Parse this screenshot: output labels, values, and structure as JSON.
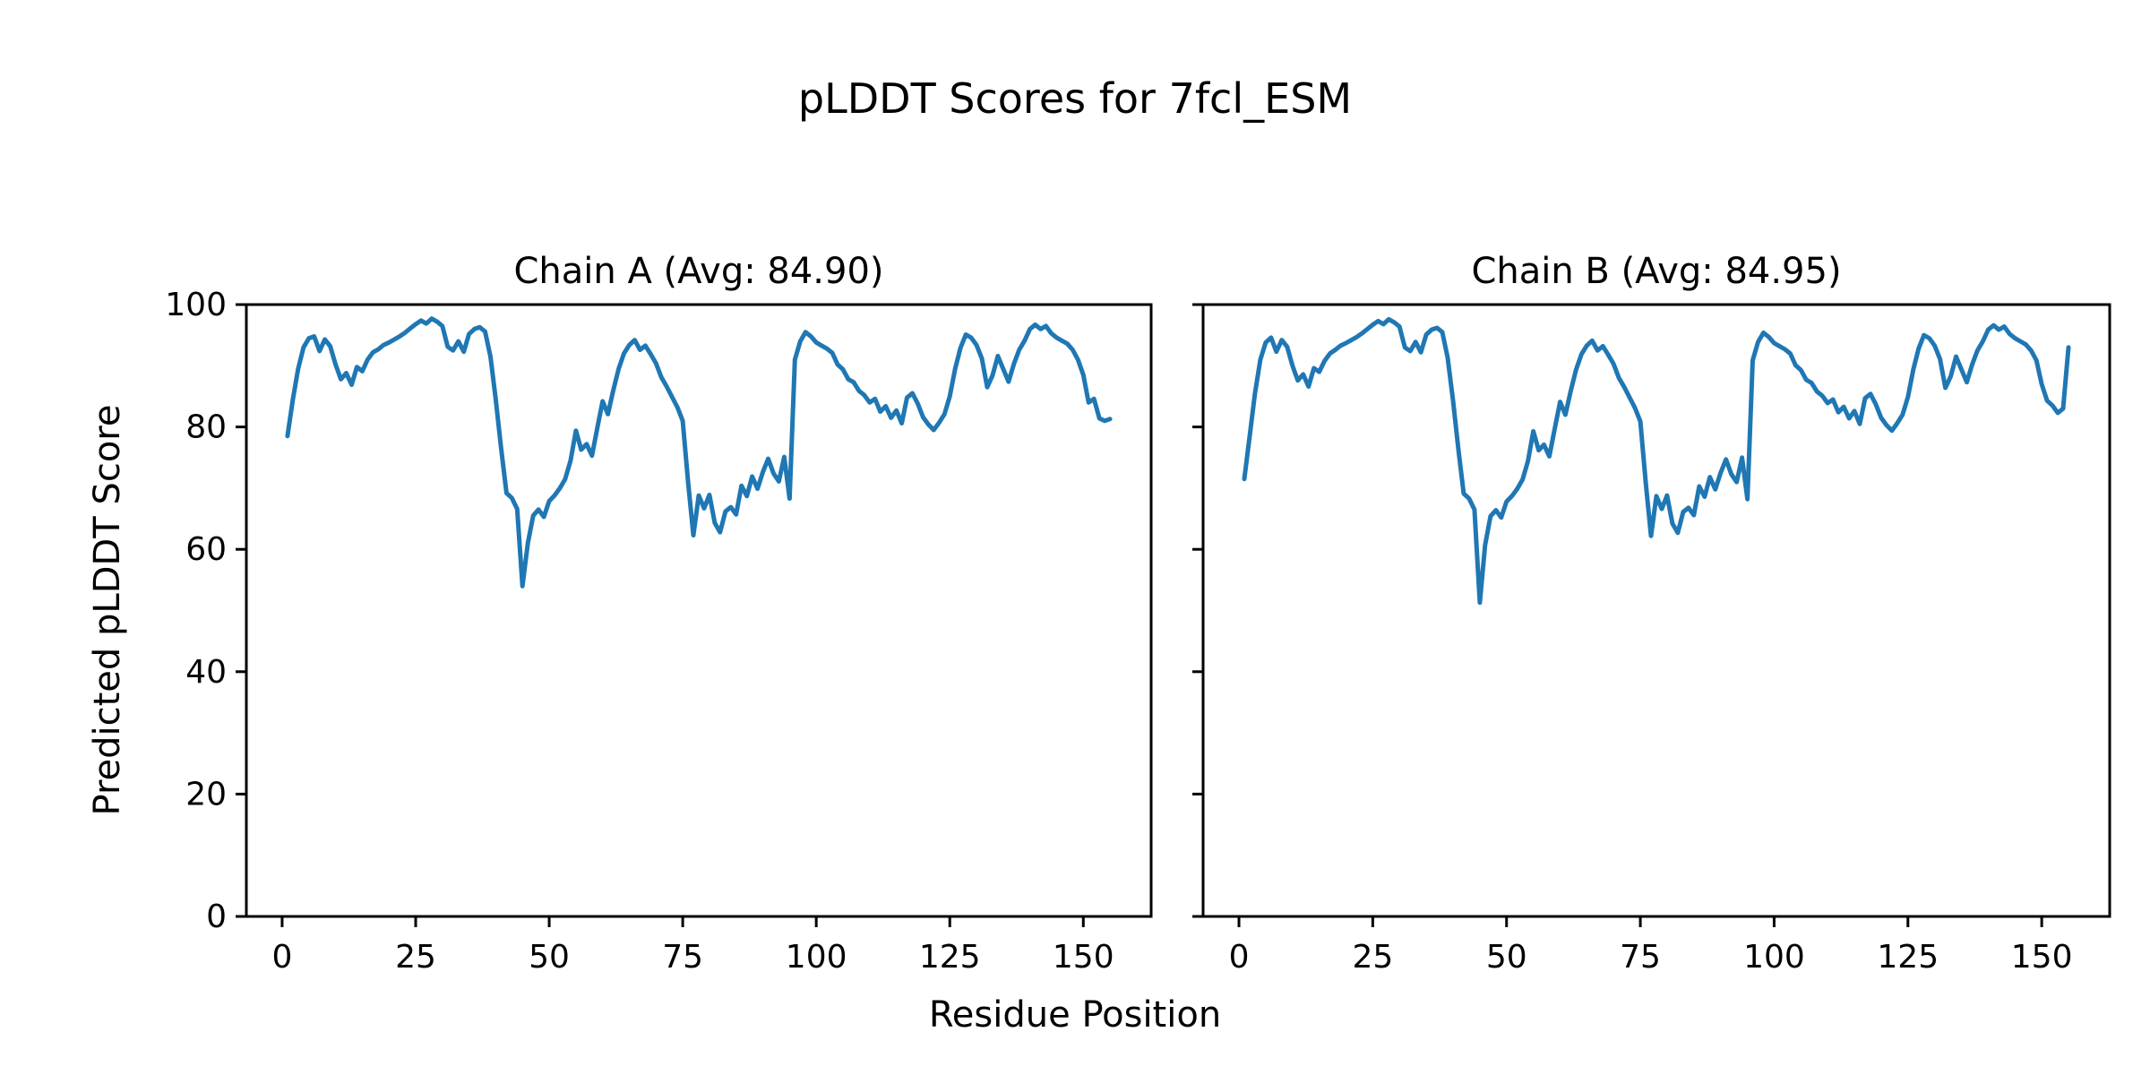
{
  "figure": {
    "title": "pLDDT Scores for 7fcl_ESM",
    "xlabel": "Residue Position",
    "ylabel": "Predicted pLDDT Score",
    "background_color": "#ffffff",
    "line_color": "#1f77b4",
    "text_color": "#000000"
  },
  "chart_data": [
    {
      "type": "line",
      "title": "Chain A (Avg: 84.90)",
      "average": 84.9,
      "legend": "none",
      "grid": false,
      "x_start": 1,
      "xlim": [
        -6.7,
        162.7
      ],
      "ylim": [
        0,
        100
      ],
      "x_ticks": [
        0,
        25,
        50,
        75,
        100,
        125,
        150
      ],
      "y_ticks": [
        0,
        20,
        40,
        60,
        80,
        100
      ],
      "values": [
        78.5,
        84.5,
        89.5,
        93.0,
        94.5,
        94.8,
        92.4,
        94.3,
        93.2,
        90.2,
        87.8,
        88.8,
        86.9,
        89.8,
        89.1,
        91.0,
        92.2,
        92.7,
        93.4,
        93.8,
        94.3,
        94.8,
        95.4,
        96.1,
        96.8,
        97.4,
        96.9,
        97.7,
        97.2,
        96.5,
        93.1,
        92.5,
        94.0,
        92.3,
        95.2,
        96.0,
        96.3,
        95.6,
        91.5,
        84.5,
        76.5,
        69.2,
        68.4,
        66.6,
        54.0,
        61.0,
        65.5,
        66.5,
        65.3,
        67.9,
        68.8,
        70.0,
        71.5,
        74.5,
        79.4,
        76.3,
        77.2,
        75.3,
        79.8,
        84.2,
        82.1,
        86.0,
        89.5,
        92.0,
        93.4,
        94.2,
        92.6,
        93.3,
        91.9,
        90.4,
        88.1,
        86.6,
        84.9,
        83.2,
        81.0,
        71.0,
        62.3,
        68.8,
        66.7,
        68.9,
        64.3,
        62.8,
        66.2,
        66.9,
        65.7,
        70.4,
        68.7,
        71.9,
        69.9,
        72.6,
        74.8,
        72.4,
        71.1,
        75.1,
        68.3,
        91.0,
        94.0,
        95.5,
        94.8,
        93.8,
        93.3,
        92.8,
        92.1,
        90.2,
        89.4,
        87.8,
        87.3,
        85.9,
        85.2,
        84.0,
        84.6,
        82.5,
        83.4,
        81.5,
        82.7,
        80.6,
        84.8,
        85.5,
        83.8,
        81.6,
        80.4,
        79.5,
        80.7,
        82.1,
        85.0,
        89.5,
        92.9,
        95.1,
        94.6,
        93.4,
        91.2,
        86.5,
        88.4,
        91.6,
        89.5,
        87.4,
        90.3,
        92.6,
        94.1,
        96.0,
        96.7,
        96.0,
        96.5,
        95.3,
        94.6,
        94.1,
        93.6,
        92.6,
        91.0,
        88.5,
        84.0,
        84.6,
        81.4,
        81.0,
        81.3
      ]
    },
    {
      "type": "line",
      "title": "Chain B (Avg: 84.95)",
      "average": 84.95,
      "legend": "none",
      "grid": false,
      "x_start": 1,
      "xlim": [
        -6.7,
        162.7
      ],
      "ylim": [
        0,
        100
      ],
      "x_ticks": [
        0,
        25,
        50,
        75,
        100,
        125,
        150
      ],
      "y_ticks": [
        0,
        20,
        40,
        60,
        80,
        100
      ],
      "values": [
        71.5,
        78.5,
        85.5,
        91.0,
        93.8,
        94.6,
        92.3,
        94.2,
        93.1,
        90.0,
        87.6,
        88.6,
        86.6,
        89.6,
        89.0,
        90.8,
        92.0,
        92.6,
        93.3,
        93.7,
        94.2,
        94.7,
        95.3,
        96.0,
        96.7,
        97.3,
        96.8,
        97.6,
        97.1,
        96.4,
        93.0,
        92.4,
        93.9,
        92.2,
        95.1,
        95.9,
        96.2,
        95.5,
        91.3,
        84.3,
        76.3,
        69.1,
        68.3,
        66.5,
        51.3,
        60.7,
        65.4,
        66.4,
        65.2,
        67.8,
        68.7,
        69.9,
        71.4,
        74.4,
        79.3,
        76.2,
        77.1,
        75.2,
        79.7,
        84.1,
        82.0,
        85.9,
        89.4,
        91.9,
        93.3,
        94.1,
        92.5,
        93.2,
        91.8,
        90.3,
        88.0,
        86.5,
        84.8,
        83.1,
        80.9,
        70.9,
        62.2,
        68.7,
        66.6,
        68.8,
        64.2,
        62.7,
        66.1,
        66.8,
        65.6,
        70.3,
        68.6,
        71.8,
        69.8,
        72.5,
        74.7,
        72.3,
        71.0,
        75.0,
        68.2,
        90.9,
        93.9,
        95.4,
        94.7,
        93.7,
        93.2,
        92.7,
        92.0,
        90.1,
        89.3,
        87.7,
        87.2,
        85.8,
        85.1,
        83.9,
        84.5,
        82.4,
        83.3,
        81.4,
        82.6,
        80.5,
        84.7,
        85.4,
        83.7,
        81.5,
        80.3,
        79.4,
        80.6,
        82.0,
        84.9,
        89.4,
        92.8,
        95.0,
        94.5,
        93.3,
        91.1,
        86.4,
        88.3,
        91.5,
        89.4,
        87.3,
        90.2,
        92.5,
        94.0,
        95.9,
        96.6,
        95.9,
        96.4,
        95.2,
        94.5,
        94.0,
        93.5,
        92.5,
        90.9,
        87.0,
        84.3,
        83.5,
        82.3,
        83.0,
        93.0
      ]
    }
  ]
}
